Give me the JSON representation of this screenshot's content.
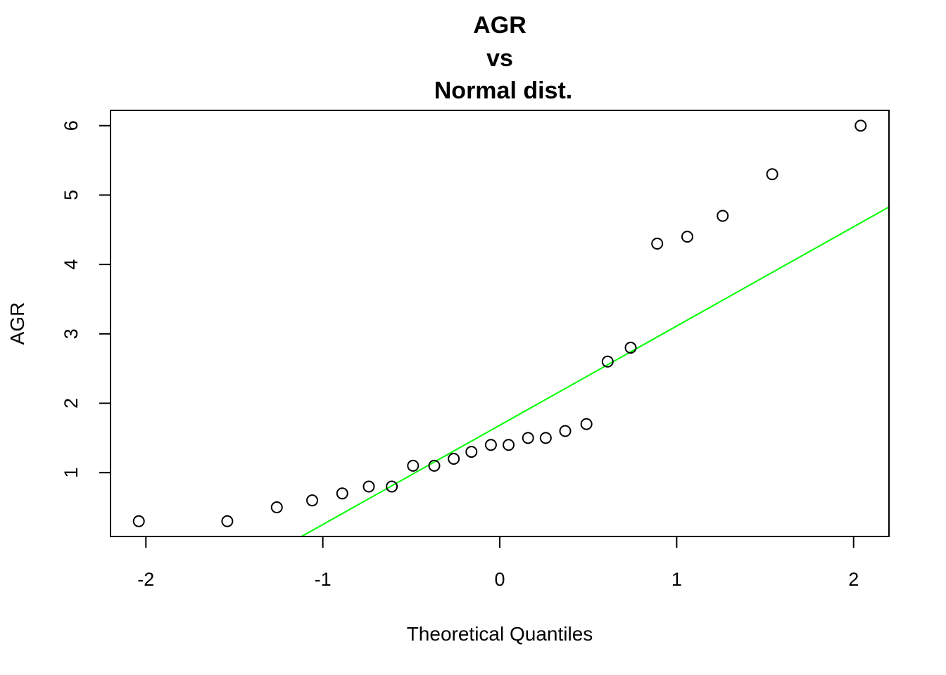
{
  "chart_data": {
    "type": "scatter",
    "title_lines": [
      "AGR",
      "vs",
      "Normal dist."
    ],
    "xlabel": "Theoretical Quantiles",
    "ylabel": "AGR",
    "xlim": [
      -2.2,
      2.2
    ],
    "ylim": [
      0.08,
      6.22
    ],
    "xticks": [
      -2,
      -1,
      0,
      1,
      2
    ],
    "xtick_labels": [
      "-2",
      "-1",
      "0",
      "1",
      "2"
    ],
    "yticks": [
      1,
      2,
      3,
      4,
      5,
      6
    ],
    "ytick_labels": [
      "1",
      "2",
      "3",
      "4",
      "5",
      "6"
    ],
    "grid": false,
    "legend": "none",
    "point_style": "open-circle",
    "point_color": "#000000",
    "line_color": "#00ff00",
    "series": [
      {
        "x": [
          -2.04,
          -1.54,
          -1.26,
          -1.06,
          -0.89,
          -0.74,
          -0.61,
          -0.49,
          -0.37,
          -0.26,
          -0.16,
          -0.05,
          0.05,
          0.16,
          0.26,
          0.37,
          0.49,
          0.61,
          0.74,
          0.89,
          1.06,
          1.26,
          1.54,
          2.04
        ],
        "y": [
          0.3,
          0.3,
          0.5,
          0.6,
          0.7,
          0.8,
          0.8,
          1.1,
          1.1,
          1.2,
          1.3,
          1.4,
          1.4,
          1.5,
          1.5,
          1.6,
          1.7,
          2.6,
          2.8,
          4.3,
          4.4,
          4.7,
          5.3,
          6.0
        ]
      }
    ],
    "reference_line": {
      "slope": 1.43,
      "intercept": 1.6826
    }
  }
}
